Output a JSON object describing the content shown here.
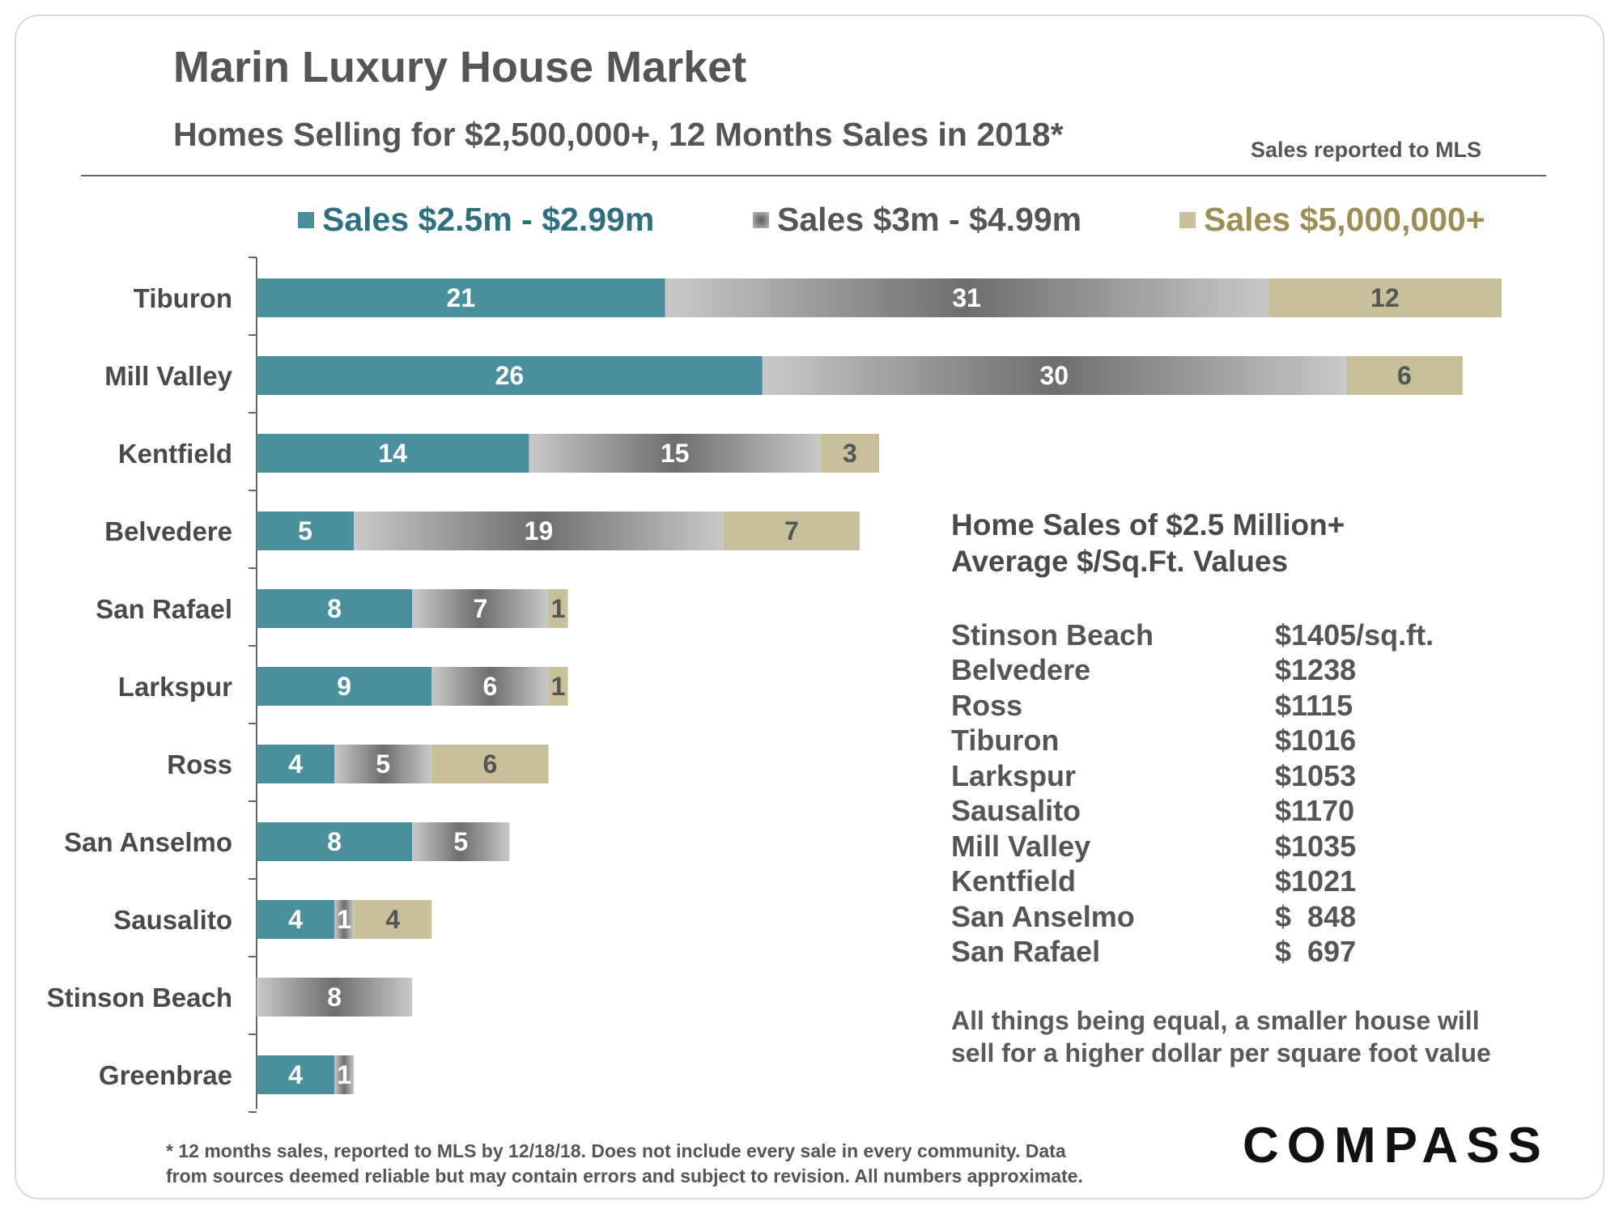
{
  "header": {
    "title": "Marin Luxury House Market",
    "subtitle": "Homes Selling for $2,500,000+, 12 Months Sales in 2018*",
    "source_note": "Sales reported to MLS"
  },
  "colors": {
    "teal": "#4a8f9c",
    "gray_dark": "#6f6f6f",
    "gray_light": "#c6c6c6",
    "tan": "#c8bf9b",
    "legend_teal_text": "#2e6f80",
    "legend_gray_text": "#555555",
    "legend_tan_text": "#9c8e55"
  },
  "chart_data": {
    "type": "bar",
    "orientation": "horizontal",
    "stacked": true,
    "categories": [
      "Tiburon",
      "Mill Valley",
      "Kentfield",
      "Belvedere",
      "San Rafael",
      "Larkspur",
      "Ross",
      "San Anselmo",
      "Sausalito",
      "Stinson Beach",
      "Greenbrae"
    ],
    "series": [
      {
        "name": "Sales $2.5m - $2.99m",
        "values": [
          21,
          26,
          14,
          5,
          8,
          9,
          4,
          8,
          4,
          0,
          4
        ]
      },
      {
        "name": "Sales $3m - $4.99m",
        "values": [
          31,
          30,
          15,
          19,
          7,
          6,
          5,
          5,
          1,
          8,
          1
        ]
      },
      {
        "name": "Sales $5,000,000+",
        "values": [
          12,
          6,
          3,
          7,
          1,
          1,
          6,
          0,
          4,
          0,
          0
        ]
      }
    ],
    "legend_position": "top",
    "xlim": [
      0,
      64
    ]
  },
  "psf_panel": {
    "heading_line1": "Home Sales of $2.5 Million+",
    "heading_line2": "Average $/Sq.Ft. Values",
    "rows": [
      {
        "area": "Stinson Beach",
        "value": "$1405/sq.ft."
      },
      {
        "area": "Belvedere",
        "value": "$1238"
      },
      {
        "area": "Ross",
        "value": "$1115"
      },
      {
        "area": "Tiburon",
        "value": "$1016"
      },
      {
        "area": "Larkspur",
        "value": "$1053"
      },
      {
        "area": "Sausalito",
        "value": "$1170"
      },
      {
        "area": "Mill Valley",
        "value": "$1035"
      },
      {
        "area": "Kentfield",
        "value": "$1021"
      },
      {
        "area": "San Anselmo",
        "value": "$  848"
      },
      {
        "area": "San Rafael",
        "value": "$  697"
      }
    ],
    "note_line1": "All things being equal, a smaller house will",
    "note_line2": "sell for a higher dollar per square foot value"
  },
  "footnote": {
    "line1": "* 12 months sales, reported to MLS by 12/18/18. Does not include every sale in every community. Data",
    "line2": "from sources deemed reliable but may contain errors and subject to revision. All numbers approximate."
  },
  "logo": "COMPASS"
}
